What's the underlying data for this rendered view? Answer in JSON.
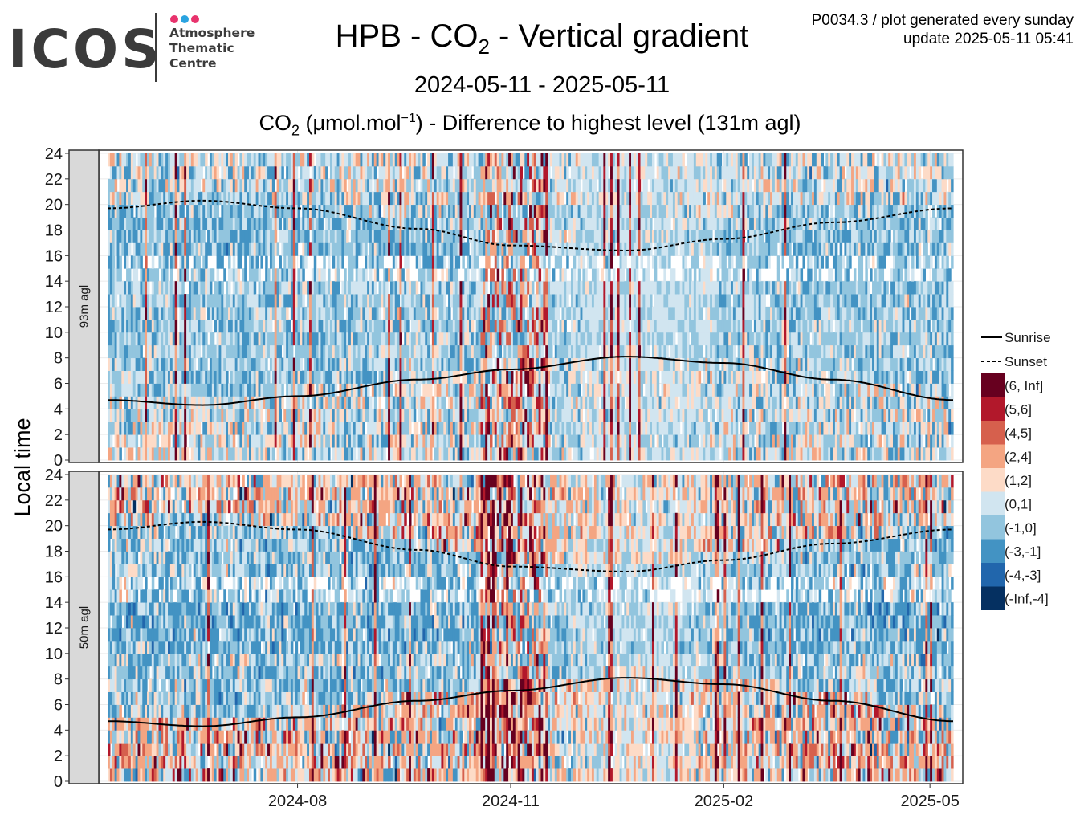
{
  "header": {
    "logo_word": "ICOS",
    "logo_sub": "Atmosphere\nThematic\nCentre",
    "logo_dot_colors": [
      "#e8336d",
      "#2aa3e0",
      "#e8336d"
    ],
    "title_pre": "HPB - CO",
    "title_sub": "2",
    "title_post": " - Vertical gradient",
    "subtitle": "2024-05-11 - 2025-05-11",
    "plot_label_pre": "CO",
    "plot_label_sub": "2",
    "plot_label_mid": " (μmol.mol",
    "plot_label_sup": "−1",
    "plot_label_post": ") - Difference to highest level (131m agl)",
    "meta_line1": "P0034.3 / plot generated every sunday",
    "meta_line2": "update  2025-05-11 05:41"
  },
  "chart_data": {
    "type": "heatmap",
    "x_range": [
      "2024-05-11",
      "2025-05-11"
    ],
    "y_range": [
      0,
      24
    ],
    "ylabel": "Local time",
    "x_ticks": [
      {
        "date": "2024-08-01",
        "label": "2024-08"
      },
      {
        "date": "2024-11-01",
        "label": "2024-11"
      },
      {
        "date": "2025-02-01",
        "label": "2025-02"
      },
      {
        "date": "2025-05-01",
        "label": "2025-05"
      }
    ],
    "y_ticks": [
      0,
      2,
      4,
      6,
      8,
      10,
      12,
      14,
      16,
      18,
      20,
      22,
      24
    ],
    "facets": [
      {
        "label": "93m agl"
      },
      {
        "label": "50m agl"
      }
    ],
    "sunrise_sunset": {
      "dates": [
        "2024-05-11",
        "2024-06-21",
        "2024-08-01",
        "2024-09-22",
        "2024-11-01",
        "2024-12-21",
        "2025-02-01",
        "2025-03-20",
        "2025-05-11"
      ],
      "sunrise": [
        4.7,
        4.3,
        5.0,
        6.3,
        7.1,
        8.1,
        7.6,
        6.3,
        4.7
      ],
      "sunset": [
        19.7,
        20.3,
        19.7,
        18.1,
        16.8,
        16.4,
        17.3,
        18.6,
        19.7
      ]
    },
    "legend": {
      "lines": [
        {
          "label": "Sunrise",
          "style": "solid"
        },
        {
          "label": "Sunset",
          "style": "dashed"
        }
      ],
      "bins": [
        {
          "label": "(6, Inf]",
          "color": "#67001f"
        },
        {
          "label": "(5,6]",
          "color": "#b2182b"
        },
        {
          "label": "(4,5]",
          "color": "#d6604d"
        },
        {
          "label": "(2,4]",
          "color": "#f4a582"
        },
        {
          "label": "(1,2]",
          "color": "#fddbc7"
        },
        {
          "label": "(0,1]",
          "color": "#d1e5f0"
        },
        {
          "label": "(-1,0]",
          "color": "#92c5de"
        },
        {
          "label": "(-3,-1]",
          "color": "#4393c3"
        },
        {
          "label": "(-4,-3]",
          "color": "#2166ac"
        },
        {
          "label": "(-Inf,-4]",
          "color": "#053061"
        }
      ]
    }
  }
}
